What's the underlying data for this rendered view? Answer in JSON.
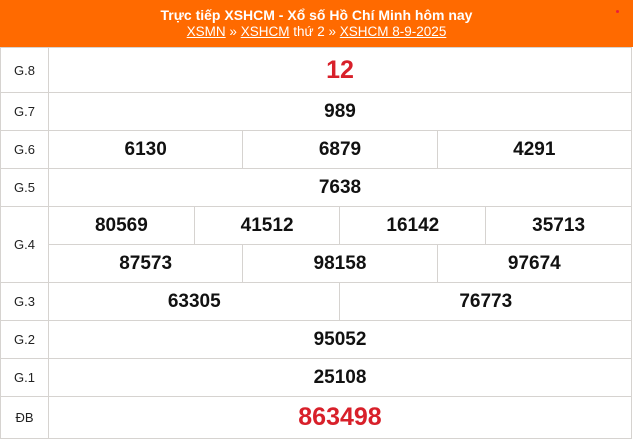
{
  "header": {
    "title": "Trực tiếp XSHCM - Xổ số Hồ Chí Minh hôm nay",
    "breadcrumb": [
      {
        "label": "XSMN",
        "link": true
      },
      {
        "label": " » ",
        "link": false
      },
      {
        "label": "XSHCM",
        "link": true
      },
      {
        "label": " thứ 2 » ",
        "link": false
      },
      {
        "label": "XSHCM 8-9-2025",
        "link": true
      }
    ],
    "bg_color": "#ff6a00"
  },
  "prizes": [
    {
      "label": "G.8",
      "numbers": [
        "12"
      ],
      "highlight": true
    },
    {
      "label": "G.7",
      "numbers": [
        "989"
      ]
    },
    {
      "label": "G.6",
      "numbers": [
        "6130",
        "6879",
        "4291"
      ]
    },
    {
      "label": "G.5",
      "numbers": [
        "7638"
      ]
    },
    {
      "label": "G.4",
      "numbers_row1": [
        "80569",
        "41512",
        "16142",
        "35713"
      ],
      "numbers_row2": [
        "87573",
        "98158",
        "97674"
      ]
    },
    {
      "label": "G.3",
      "numbers": [
        "63305",
        "76773"
      ]
    },
    {
      "label": "G.2",
      "numbers": [
        "95052"
      ]
    },
    {
      "label": "G.1",
      "numbers": [
        "25108"
      ]
    },
    {
      "label": "ĐB",
      "numbers": [
        "863498"
      ],
      "highlight": true
    }
  ],
  "colors": {
    "highlight": "#d8202a"
  }
}
